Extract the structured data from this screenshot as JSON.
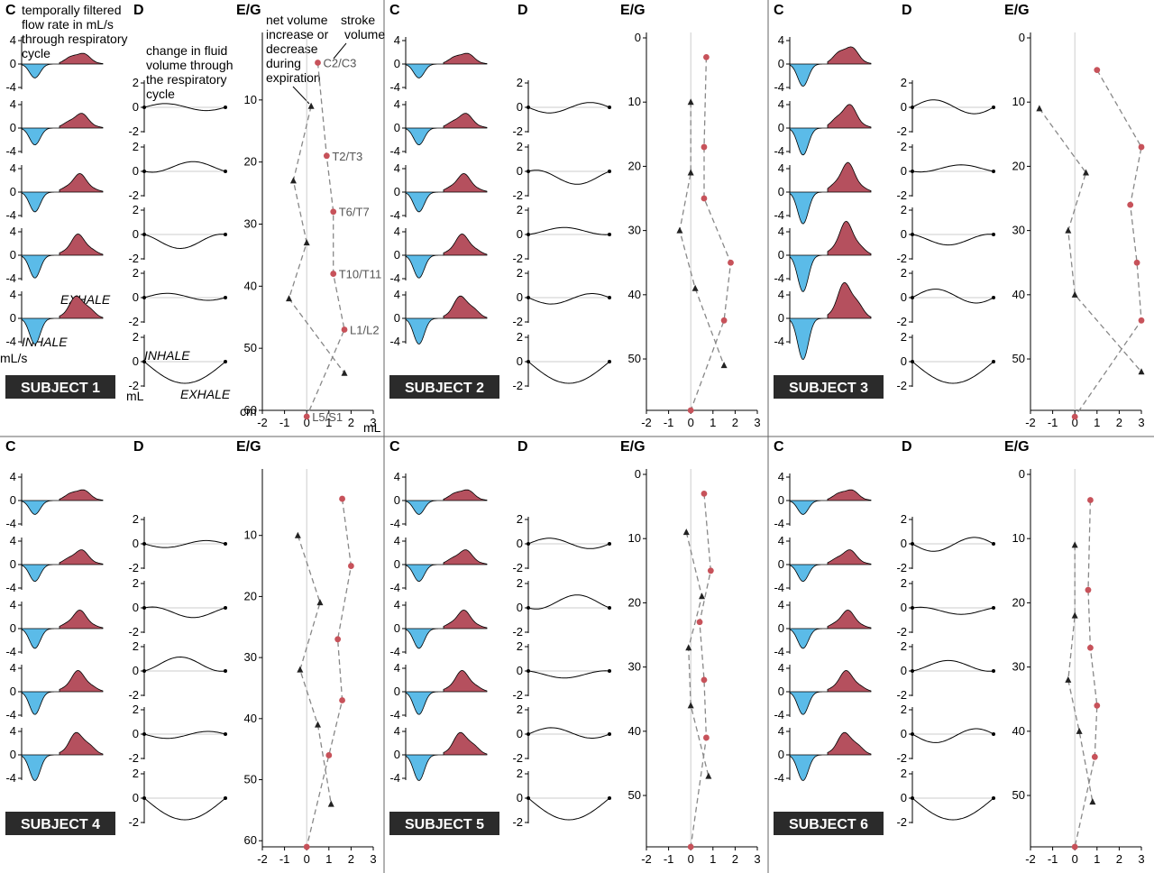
{
  "panel_headers": {
    "c": "C",
    "d": "D",
    "eg": "E/G"
  },
  "annotations": {
    "flow_title": [
      "temporally filtered",
      "flow rate in mL/s",
      "through respiratory",
      "cycle"
    ],
    "fluid_title": [
      "change in fluid",
      "volume through",
      "the respiratory",
      "cycle"
    ],
    "net_volume": [
      "net volume",
      "increase or",
      "decrease",
      "during",
      "expiration"
    ],
    "stroke_volume": [
      "stroke",
      "volume"
    ],
    "exhale": "EXHALE",
    "inhale": "INHALE",
    "flow_unit": "mL/s",
    "vol_unit": "mL",
    "eg_yunit": "cm",
    "eg_xunit": "mL"
  },
  "levels": [
    "C2/C3",
    "T2/T3",
    "T6/T7",
    "T10/T11",
    "L1/L2",
    "L5/S1"
  ],
  "colors": {
    "inhale": "#5bbbe8",
    "exhale": "#b5505e",
    "net": "#222222",
    "stroke": "#c7525a",
    "dash": "#888888",
    "badge": "#2b2b2b"
  },
  "chart_data": [
    {
      "type": "line",
      "subject": "SUBJECT 1",
      "xlabel": "mL",
      "ylabel": "cm",
      "xlim": [
        -2,
        3
      ],
      "ylim": [
        60,
        0
      ],
      "xticks": [
        "-2",
        "-1",
        "0",
        "1",
        "2",
        "3"
      ],
      "yticks": [
        "10",
        "20",
        "30",
        "40",
        "50",
        "60"
      ],
      "series": [
        {
          "name": "net volume increase or decrease during expiration",
          "marker": "triangle",
          "x": [
            0.2,
            -0.6,
            0.0,
            -0.8,
            1.7
          ],
          "y": [
            11,
            23,
            33,
            42,
            54
          ]
        },
        {
          "name": "stroke volume",
          "marker": "circle",
          "x": [
            0.5,
            0.9,
            1.2,
            1.2,
            1.7,
            0.0
          ],
          "y": [
            4,
            19,
            28,
            38,
            47,
            61
          ]
        }
      ]
    },
    {
      "type": "line",
      "subject": "SUBJECT 2",
      "xlabel": "mL",
      "ylabel": "cm",
      "xlim": [
        -2,
        3
      ],
      "ylim": [
        58,
        0
      ],
      "xticks": [
        "-2",
        "-1",
        "0",
        "1",
        "2",
        "3"
      ],
      "yticks": [
        "0",
        "10",
        "20",
        "30",
        "40",
        "50"
      ],
      "series": [
        {
          "name": "net volume",
          "marker": "triangle",
          "x": [
            0.0,
            0.0,
            -0.5,
            0.2,
            1.5
          ],
          "y": [
            10,
            21,
            30,
            39,
            51
          ]
        },
        {
          "name": "stroke volume",
          "marker": "circle",
          "x": [
            0.7,
            0.6,
            0.6,
            1.8,
            1.5,
            0.0
          ],
          "y": [
            3,
            17,
            25,
            35,
            44,
            58
          ]
        }
      ]
    },
    {
      "type": "line",
      "subject": "SUBJECT 3",
      "xlabel": "mL",
      "ylabel": "cm",
      "xlim": [
        -2,
        3
      ],
      "ylim": [
        58,
        0
      ],
      "xticks": [
        "-2",
        "-1",
        "0",
        "1",
        "2",
        "3"
      ],
      "yticks": [
        "0",
        "10",
        "20",
        "30",
        "40",
        "50"
      ],
      "series": [
        {
          "name": "net volume",
          "marker": "triangle",
          "x": [
            -1.6,
            0.5,
            -0.3,
            0.0,
            3.0
          ],
          "y": [
            11,
            21,
            30,
            40,
            52
          ]
        },
        {
          "name": "stroke volume",
          "marker": "circle",
          "x": [
            1.0,
            3.0,
            2.5,
            2.8,
            3.0,
            0.0
          ],
          "y": [
            5,
            17,
            26,
            35,
            44,
            59
          ]
        }
      ]
    },
    {
      "type": "line",
      "subject": "SUBJECT 4",
      "xlabel": "mL",
      "ylabel": "cm",
      "xlim": [
        -2,
        3
      ],
      "ylim": [
        61,
        0
      ],
      "xticks": [
        "-2",
        "-1",
        "0",
        "1",
        "2",
        "3"
      ],
      "yticks": [
        "10",
        "20",
        "30",
        "40",
        "50",
        "60"
      ],
      "series": [
        {
          "name": "net volume",
          "marker": "triangle",
          "x": [
            -0.4,
            0.6,
            -0.3,
            0.5,
            1.1
          ],
          "y": [
            10,
            21,
            32,
            41,
            54
          ]
        },
        {
          "name": "stroke volume",
          "marker": "circle",
          "x": [
            1.6,
            2.0,
            1.4,
            1.6,
            1.0,
            0.0
          ],
          "y": [
            4,
            15,
            27,
            37,
            46,
            61
          ]
        }
      ]
    },
    {
      "type": "line",
      "subject": "SUBJECT 5",
      "xlabel": "mL",
      "ylabel": "cm",
      "xlim": [
        -2,
        3
      ],
      "ylim": [
        58,
        0
      ],
      "xticks": [
        "-2",
        "-1",
        "0",
        "1",
        "2",
        "3"
      ],
      "yticks": [
        "0",
        "10",
        "20",
        "30",
        "40",
        "50"
      ],
      "series": [
        {
          "name": "net volume",
          "marker": "triangle",
          "x": [
            -0.2,
            0.5,
            -0.1,
            0.0,
            0.8
          ],
          "y": [
            9,
            19,
            27,
            36,
            47
          ]
        },
        {
          "name": "stroke volume",
          "marker": "circle",
          "x": [
            0.6,
            0.9,
            0.4,
            0.6,
            0.7,
            0.0
          ],
          "y": [
            3,
            15,
            23,
            32,
            41,
            58
          ]
        }
      ]
    },
    {
      "type": "line",
      "subject": "SUBJECT 6",
      "xlabel": "mL",
      "ylabel": "cm",
      "xlim": [
        -2,
        3
      ],
      "ylim": [
        58,
        0
      ],
      "xticks": [
        "-2",
        "-1",
        "0",
        "1",
        "2",
        "3"
      ],
      "yticks": [
        "0",
        "10",
        "20",
        "30",
        "40",
        "50"
      ],
      "series": [
        {
          "name": "net volume",
          "marker": "triangle",
          "x": [
            0.0,
            0.0,
            -0.3,
            0.2,
            0.8
          ],
          "y": [
            11,
            22,
            32,
            40,
            51
          ]
        },
        {
          "name": "stroke volume",
          "marker": "circle",
          "x": [
            0.7,
            0.6,
            0.7,
            1.0,
            0.9,
            0.0
          ],
          "y": [
            4,
            18,
            27,
            36,
            44,
            58
          ]
        }
      ]
    }
  ]
}
